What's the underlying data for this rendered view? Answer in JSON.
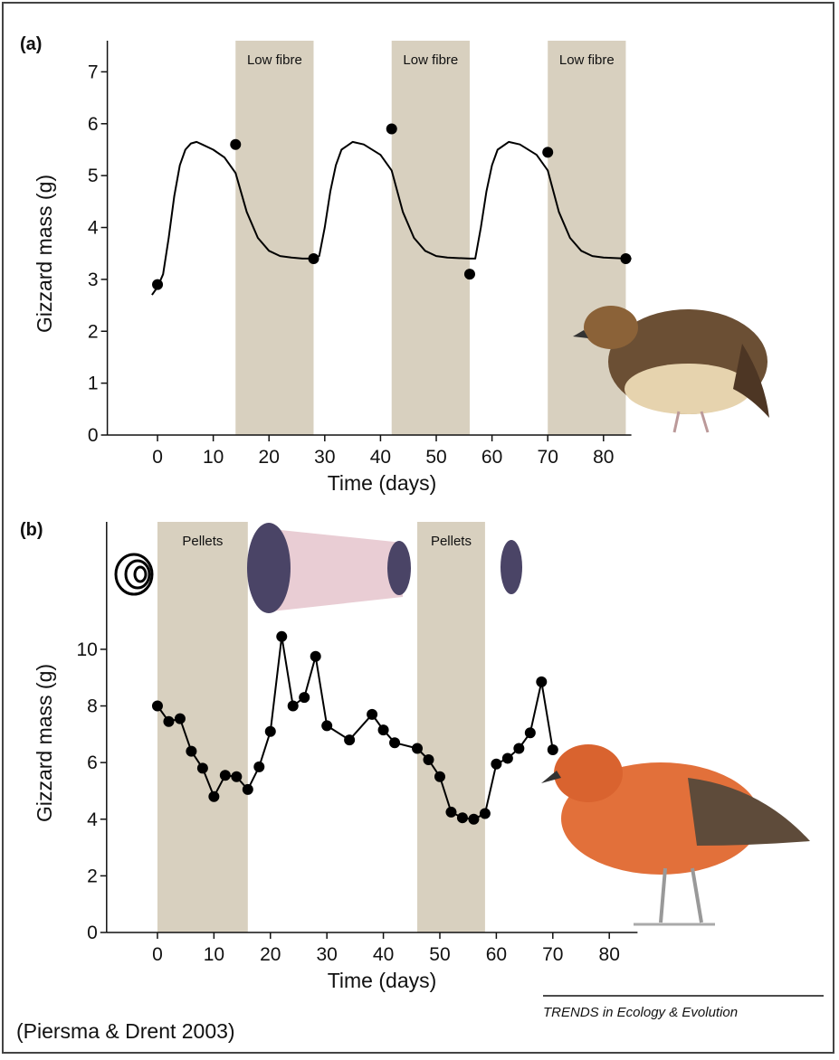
{
  "chart_data": [
    {
      "type": "line",
      "panel_label": "(a)",
      "xlabel": "Time (days)",
      "ylabel": "Gizzard mass (g)",
      "xlim": [
        -9,
        85
      ],
      "ylim": [
        0,
        7.6
      ],
      "xticks": [
        0,
        10,
        20,
        30,
        40,
        50,
        60,
        70,
        80
      ],
      "yticks": [
        0,
        1,
        2,
        3,
        4,
        5,
        6,
        7
      ],
      "shade_color": "#d8d0bf",
      "shaded_regions": [
        {
          "start": 14,
          "end": 28,
          "label": "Low fibre"
        },
        {
          "start": 42,
          "end": 56,
          "label": "Low fibre"
        },
        {
          "start": 70,
          "end": 84,
          "label": "Low fibre"
        }
      ],
      "series": [
        {
          "color": "#000000",
          "markers": false,
          "connect": true,
          "x": [
            -1,
            0,
            1,
            2,
            3,
            4,
            5,
            6,
            7,
            8,
            10,
            12,
            14,
            16,
            18,
            20,
            22,
            24,
            26,
            28,
            29,
            30,
            31,
            32,
            33,
            35,
            37,
            40,
            42,
            44,
            46,
            48,
            50,
            52,
            56,
            57,
            58,
            59,
            60,
            61,
            63,
            65,
            68,
            70,
            72,
            74,
            76,
            78,
            80,
            84,
            85
          ],
          "values": [
            2.7,
            2.85,
            3.1,
            3.8,
            4.6,
            5.2,
            5.5,
            5.62,
            5.65,
            5.6,
            5.5,
            5.35,
            5.05,
            4.3,
            3.8,
            3.55,
            3.45,
            3.42,
            3.4,
            3.4,
            3.45,
            4.0,
            4.7,
            5.2,
            5.5,
            5.65,
            5.6,
            5.4,
            5.1,
            4.3,
            3.8,
            3.55,
            3.45,
            3.42,
            3.4,
            3.4,
            4.0,
            4.7,
            5.2,
            5.5,
            5.65,
            5.6,
            5.4,
            5.1,
            4.3,
            3.8,
            3.55,
            3.45,
            3.42,
            3.4,
            3.4
          ]
        },
        {
          "color": "#000000",
          "markers": true,
          "connect": false,
          "x": [
            0,
            14,
            28,
            42,
            56,
            70,
            84
          ],
          "values": [
            2.9,
            5.6,
            3.4,
            5.9,
            3.1,
            5.45,
            3.4
          ]
        }
      ]
    },
    {
      "type": "line",
      "panel_label": "(b)",
      "xlabel": "Time (days)",
      "ylabel": "Gizzard mass (g)",
      "xlim": [
        -9,
        85
      ],
      "ylim": [
        0,
        14.5
      ],
      "xticks": [
        0,
        10,
        20,
        30,
        40,
        50,
        60,
        70,
        80
      ],
      "yticks": [
        0,
        2,
        4,
        6,
        8,
        10
      ],
      "shade_color": "#d8d0bf",
      "shaded_regions": [
        {
          "start": 0,
          "end": 16,
          "label": "Pellets"
        },
        {
          "start": 46,
          "end": 58,
          "label": "Pellets"
        }
      ],
      "series": [
        {
          "color": "#000000",
          "markers": true,
          "connect": true,
          "x": [
            0,
            2,
            4,
            6,
            8,
            10,
            12,
            14,
            16,
            18,
            20,
            22,
            24,
            26,
            28,
            30,
            34,
            38,
            40,
            42,
            46,
            48,
            50,
            52,
            54,
            56,
            58,
            60,
            62,
            64,
            66,
            68,
            70
          ],
          "values": [
            8.0,
            7.45,
            7.55,
            6.4,
            5.8,
            4.8,
            5.55,
            5.5,
            5.05,
            5.85,
            7.1,
            10.45,
            8.0,
            8.3,
            9.75,
            7.3,
            6.8,
            7.7,
            7.15,
            6.7,
            6.5,
            6.1,
            5.5,
            4.25,
            4.05,
            4.0,
            4.2,
            5.95,
            6.15,
            6.5,
            7.05,
            8.85,
            6.45
          ]
        }
      ]
    }
  ],
  "source": "(Piersma & Drent 2003)",
  "journal": "TRENDS in Ecology & Evolution"
}
